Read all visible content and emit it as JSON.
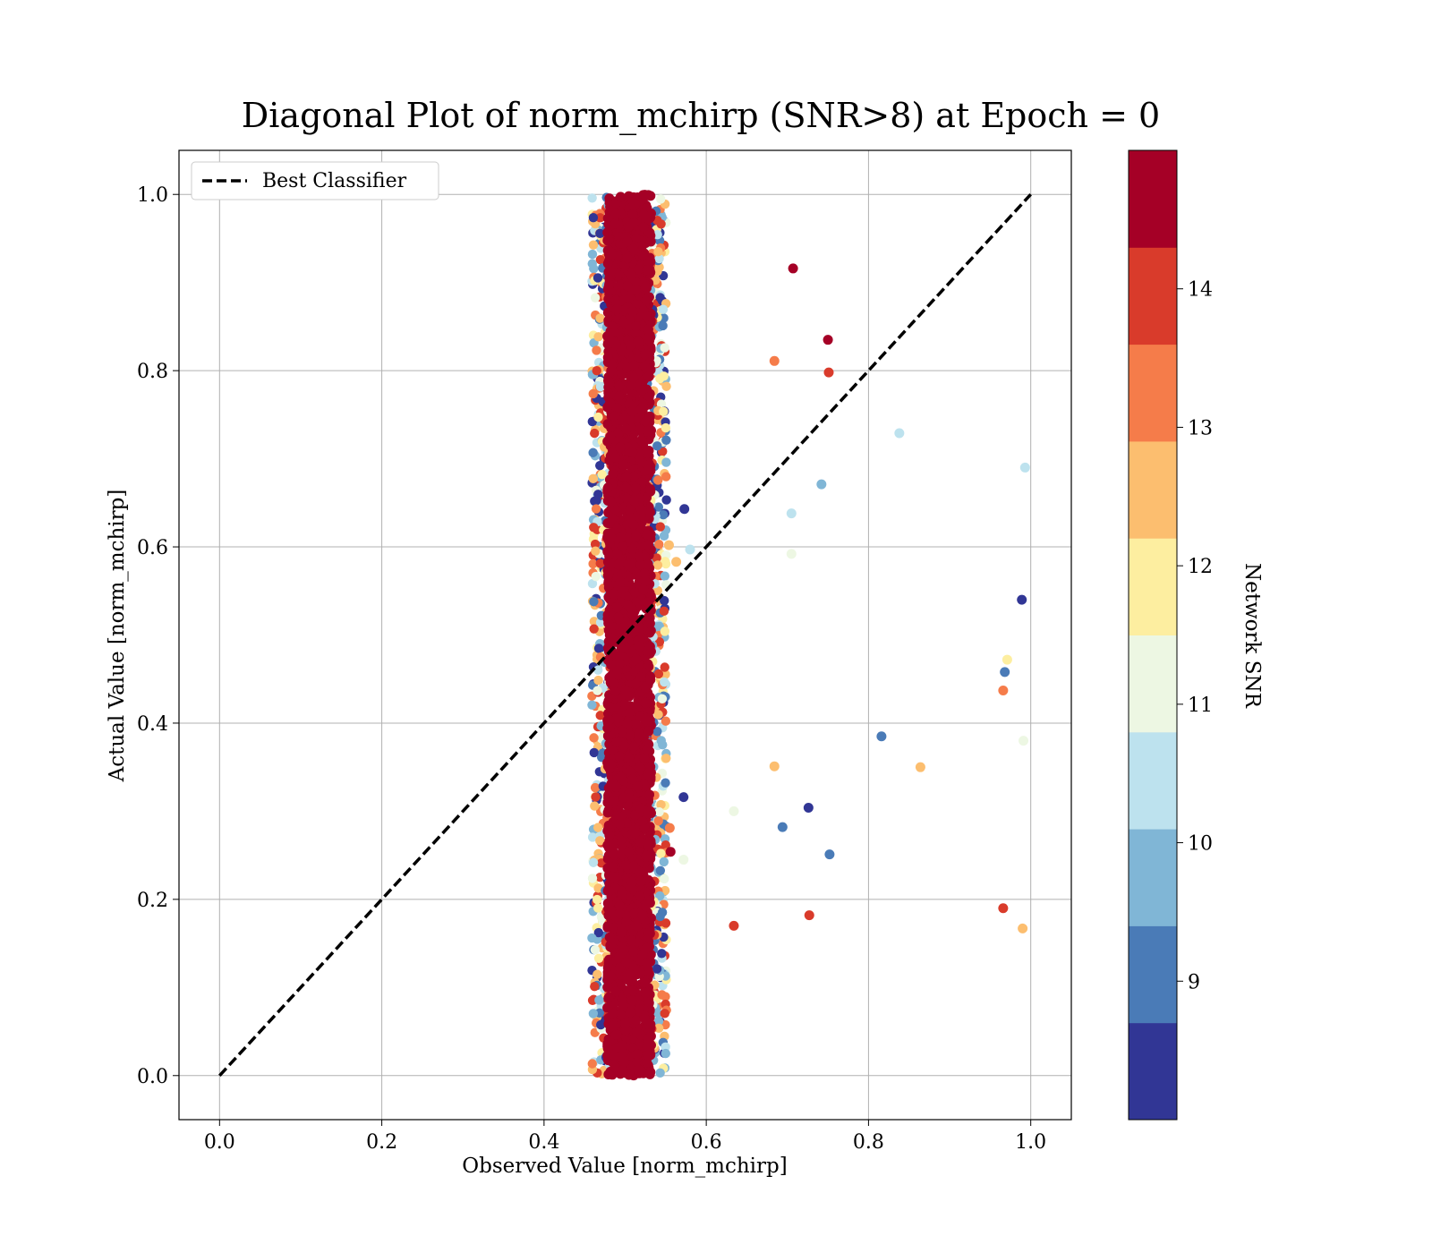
{
  "chart_data": {
    "type": "scatter",
    "title": "Diagonal Plot of norm_mchirp (SNR>8) at Epoch = 0",
    "xlabel": "Observed Value [norm_mchirp]",
    "ylabel": "Actual Value [norm_mchirp]",
    "xlim": [
      -0.05,
      1.05
    ],
    "ylim": [
      -0.05,
      1.05
    ],
    "xticks": [
      "0.0",
      "0.2",
      "0.4",
      "0.6",
      "0.8",
      "1.0"
    ],
    "yticks": [
      "0.0",
      "0.2",
      "0.4",
      "0.6",
      "0.8",
      "1.0"
    ],
    "grid": true,
    "legend": {
      "position": "top-left",
      "entries": [
        {
          "label": "Best Classifier",
          "style": "black dashed line"
        }
      ]
    },
    "reference_line": {
      "name": "Best Classifier",
      "x": [
        0,
        1
      ],
      "y": [
        0,
        1
      ],
      "color": "#000000",
      "dash": true
    },
    "dense_band": {
      "x_center": 0.505,
      "x_spread": 0.03,
      "y_range": [
        0.0,
        1.0
      ],
      "dominant_snr": 14.5,
      "description_colors": "mostly SNR>14 dark red with mixed lower-SNR points along edges"
    },
    "outliers": [
      {
        "x": 0.707,
        "y": 0.916,
        "snr": 14.6
      },
      {
        "x": 0.75,
        "y": 0.835,
        "snr": 14.6
      },
      {
        "x": 0.684,
        "y": 0.811,
        "snr": 13.4
      },
      {
        "x": 0.751,
        "y": 0.798,
        "snr": 14.0
      },
      {
        "x": 0.838,
        "y": 0.729,
        "snr": 10.3
      },
      {
        "x": 0.993,
        "y": 0.69,
        "snr": 10.3
      },
      {
        "x": 0.742,
        "y": 0.671,
        "snr": 9.8
      },
      {
        "x": 0.573,
        "y": 0.643,
        "snr": 8.3
      },
      {
        "x": 0.705,
        "y": 0.638,
        "snr": 10.3
      },
      {
        "x": 0.554,
        "y": 0.602,
        "snr": 12.6
      },
      {
        "x": 0.58,
        "y": 0.597,
        "snr": 10.3
      },
      {
        "x": 0.705,
        "y": 0.592,
        "snr": 11.2
      },
      {
        "x": 0.563,
        "y": 0.583,
        "snr": 12.6
      },
      {
        "x": 0.989,
        "y": 0.54,
        "snr": 8.3
      },
      {
        "x": 0.971,
        "y": 0.472,
        "snr": 11.8
      },
      {
        "x": 0.968,
        "y": 0.458,
        "snr": 9.3
      },
      {
        "x": 0.966,
        "y": 0.437,
        "snr": 13.4
      },
      {
        "x": 0.816,
        "y": 0.385,
        "snr": 9.3
      },
      {
        "x": 0.991,
        "y": 0.38,
        "snr": 11.2
      },
      {
        "x": 0.684,
        "y": 0.351,
        "snr": 12.6
      },
      {
        "x": 0.864,
        "y": 0.35,
        "snr": 12.6
      },
      {
        "x": 0.572,
        "y": 0.316,
        "snr": 8.3
      },
      {
        "x": 0.726,
        "y": 0.304,
        "snr": 8.3
      },
      {
        "x": 0.634,
        "y": 0.3,
        "snr": 11.2
      },
      {
        "x": 0.694,
        "y": 0.282,
        "snr": 9.3
      },
      {
        "x": 0.555,
        "y": 0.281,
        "snr": 13.4
      },
      {
        "x": 0.556,
        "y": 0.254,
        "snr": 14.6
      },
      {
        "x": 0.752,
        "y": 0.251,
        "snr": 9.3
      },
      {
        "x": 0.572,
        "y": 0.245,
        "snr": 11.2
      },
      {
        "x": 0.966,
        "y": 0.19,
        "snr": 14.0
      },
      {
        "x": 0.727,
        "y": 0.182,
        "snr": 14.0
      },
      {
        "x": 0.634,
        "y": 0.17,
        "snr": 14.0
      },
      {
        "x": 0.99,
        "y": 0.167,
        "snr": 12.6
      }
    ],
    "colorbar": {
      "label": "Network SNR",
      "range": [
        8.0,
        15.0
      ],
      "ticks": [
        "9",
        "10",
        "11",
        "12",
        "13",
        "14"
      ],
      "tick_values": [
        9,
        10,
        11,
        12,
        13,
        14
      ],
      "colormap": "RdYlBu_r",
      "bins": [
        {
          "from": 8.0,
          "to": 8.7,
          "color": "#313695"
        },
        {
          "from": 8.7,
          "to": 9.4,
          "color": "#4a7bb7"
        },
        {
          "from": 9.4,
          "to": 10.1,
          "color": "#80b6d6"
        },
        {
          "from": 10.1,
          "to": 10.8,
          "color": "#bde2ee"
        },
        {
          "from": 10.8,
          "to": 11.5,
          "color": "#edf7e3"
        },
        {
          "from": 11.5,
          "to": 12.2,
          "color": "#fdeea0"
        },
        {
          "from": 12.2,
          "to": 12.9,
          "color": "#fcbe6f"
        },
        {
          "from": 12.9,
          "to": 13.6,
          "color": "#f57c4a"
        },
        {
          "from": 13.6,
          "to": 14.3,
          "color": "#d93b2b"
        },
        {
          "from": 14.3,
          "to": 15.0,
          "color": "#a50026"
        }
      ]
    }
  }
}
